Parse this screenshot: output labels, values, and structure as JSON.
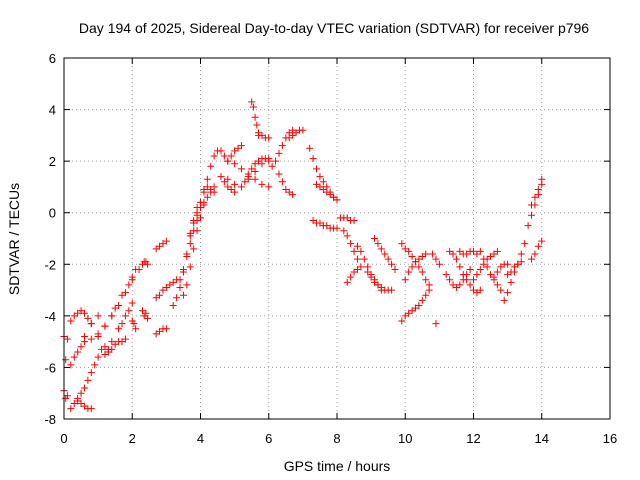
{
  "chart_data": {
    "type": "scatter",
    "title": "Day 194 of 2025, Sidereal Day-to-day VTEC variation (SDTVAR) for receiver p796",
    "xlabel": "GPS time / hours",
    "ylabel": "SDTVAR / TECUs",
    "xlim": [
      0,
      16
    ],
    "ylim": [
      -8,
      6
    ],
    "xticks": [
      "0",
      "2",
      "4",
      "6",
      "8",
      "10",
      "12",
      "14",
      "16"
    ],
    "yticks": [
      "-8",
      "-6",
      "-4",
      "-2",
      "0",
      "2",
      "4",
      "6"
    ],
    "grid": true,
    "marker": "+",
    "color": "#ff0000",
    "series": [
      {
        "x": [
          0.0,
          0.05,
          0.1
        ],
        "y": [
          -4.8,
          -5.7,
          -4.9
        ]
      },
      {
        "x": [
          0.0,
          0.05,
          0.1
        ],
        "y": [
          -6.9,
          -7.2,
          -7.1
        ]
      },
      {
        "x": [
          0.2,
          0.3,
          0.4,
          0.5,
          0.6,
          0.7,
          0.8,
          1.0,
          1.2,
          1.3
        ],
        "y": [
          -4.2,
          -4.0,
          -3.9,
          -3.8,
          -3.9,
          -4.1,
          -4.3,
          -4.8,
          -5.2,
          -5.3
        ]
      },
      {
        "x": [
          0.2,
          0.3,
          0.4,
          0.6,
          0.8,
          1.0,
          1.2,
          1.4,
          1.6,
          1.8,
          2.0,
          2.1
        ],
        "y": [
          -5.9,
          -5.6,
          -5.4,
          -5.0,
          -4.9,
          -4.7,
          -4.4,
          -4.0,
          -3.6,
          -3.1,
          -2.5,
          -2.2
        ]
      },
      {
        "x": [
          0.2,
          0.3,
          0.4,
          0.5,
          0.6,
          0.7,
          0.8,
          0.9,
          1.0,
          1.1
        ],
        "y": [
          -7.6,
          -7.4,
          -7.2,
          -7.0,
          -6.8,
          -6.5,
          -6.2,
          -5.9,
          -5.6,
          -5.3
        ]
      },
      {
        "x": [
          0.4,
          0.5,
          0.6,
          0.7,
          0.8
        ],
        "y": [
          -7.3,
          -7.4,
          -7.5,
          -7.6,
          -7.6
        ]
      },
      {
        "x": [
          0.5,
          0.6,
          0.8,
          1.0,
          1.2,
          1.4
        ],
        "y": [
          -5.2,
          -4.8,
          -4.3,
          -4.0,
          -4.4,
          -5.0
        ]
      },
      {
        "x": [
          1.2,
          1.3,
          1.4,
          1.5,
          1.6,
          1.7,
          1.8
        ],
        "y": [
          -5.5,
          -5.4,
          -5.3,
          -5.1,
          -5.0,
          -5.0,
          -4.9
        ]
      },
      {
        "x": [
          1.2,
          1.4,
          1.5,
          1.7,
          1.9,
          2.0
        ],
        "y": [
          -4.4,
          -4.0,
          -3.7,
          -3.2,
          -2.8,
          -2.6
        ]
      },
      {
        "x": [
          1.6,
          1.7,
          1.8,
          1.9,
          2.0
        ],
        "y": [
          -4.5,
          -4.3,
          -4.0,
          -3.8,
          -3.5
        ]
      },
      {
        "x": [
          2.0,
          2.05,
          2.1
        ],
        "y": [
          -4.2,
          -4.3,
          -4.5
        ]
      },
      {
        "x": [
          2.3,
          2.35,
          2.4,
          2.45
        ],
        "y": [
          -3.8,
          -4.0,
          -3.9,
          -4.1
        ]
      },
      {
        "x": [
          2.2,
          2.3,
          2.35,
          2.4,
          2.45
        ],
        "y": [
          -2.2,
          -2.0,
          -1.9,
          -1.9,
          -2.0
        ]
      },
      {
        "x": [
          2.7,
          2.8,
          2.9,
          3.0
        ],
        "y": [
          -1.4,
          -1.3,
          -1.2,
          -1.1
        ]
      },
      {
        "x": [
          2.7,
          2.8,
          2.9,
          3.0
        ],
        "y": [
          -4.7,
          -4.6,
          -4.5,
          -4.5
        ]
      },
      {
        "x": [
          2.7,
          2.8,
          2.9,
          3.0,
          3.1,
          3.2,
          3.3,
          3.5
        ],
        "y": [
          -3.3,
          -3.2,
          -3.0,
          -2.9,
          -2.8,
          -2.7,
          -2.6,
          -2.3
        ]
      },
      {
        "x": [
          3.2,
          3.3,
          3.4,
          3.5,
          3.6,
          3.7,
          3.8,
          3.9
        ],
        "y": [
          -3.6,
          -3.3,
          -2.9,
          -2.3,
          -1.6,
          -0.9,
          -0.3,
          0.2
        ]
      },
      {
        "x": [
          3.4,
          3.5,
          3.6,
          3.7,
          3.8,
          3.9
        ],
        "y": [
          -2.6,
          -2.2,
          -1.7,
          -1.2,
          -0.7,
          -0.3
        ]
      },
      {
        "x": [
          3.5,
          3.6,
          3.7,
          3.8,
          3.9,
          4.0,
          4.1
        ],
        "y": [
          -3.2,
          -2.8,
          -2.1,
          -1.4,
          -0.7,
          -0.2,
          0.3
        ]
      },
      {
        "x": [
          3.7,
          3.8,
          3.9,
          4.0,
          4.1,
          4.2,
          4.3,
          4.4
        ],
        "y": [
          -0.8,
          -0.4,
          -0.1,
          0.2,
          0.4,
          0.6,
          0.8,
          1.0
        ]
      },
      {
        "x": [
          3.9,
          4.0,
          4.1,
          4.2,
          4.3,
          4.4
        ],
        "y": [
          0.0,
          0.4,
          0.8,
          1.0,
          0.9,
          0.8
        ]
      },
      {
        "x": [
          4.1,
          4.2,
          4.3,
          4.4,
          4.5
        ],
        "y": [
          0.9,
          1.3,
          1.8,
          2.2,
          2.4
        ]
      },
      {
        "x": [
          4.6,
          4.7,
          4.8,
          4.9,
          5.0
        ],
        "y": [
          1.4,
          1.2,
          1.0,
          0.9,
          0.8
        ]
      },
      {
        "x": [
          4.8,
          4.9,
          5.0,
          5.1,
          5.2
        ],
        "y": [
          2.0,
          2.2,
          2.4,
          2.5,
          2.6
        ]
      },
      {
        "x": [
          4.6,
          4.7,
          4.8,
          5.0,
          5.2,
          5.4,
          5.6,
          5.8,
          6.0
        ],
        "y": [
          2.4,
          2.2,
          2.0,
          1.9,
          1.7,
          1.5,
          1.3,
          1.1,
          1.0
        ]
      },
      {
        "x": [
          4.8,
          5.0,
          5.2,
          5.4,
          5.6,
          5.8,
          6.0
        ],
        "y": [
          1.3,
          1.1,
          1.0,
          1.3,
          1.6,
          1.9,
          2.1
        ]
      },
      {
        "x": [
          5.3,
          5.4,
          5.5,
          5.6,
          5.7,
          5.8,
          5.9,
          6.0
        ],
        "y": [
          1.2,
          1.4,
          1.7,
          1.9,
          2.0,
          2.1,
          2.1,
          2.0
        ]
      },
      {
        "x": [
          5.5,
          5.55,
          5.6,
          5.65,
          5.7
        ],
        "y": [
          4.3,
          4.1,
          3.7,
          3.4,
          3.1
        ]
      },
      {
        "x": [
          5.7,
          5.8,
          5.9,
          6.0
        ],
        "y": [
          3.0,
          3.0,
          2.9,
          2.9
        ]
      },
      {
        "x": [
          6.1,
          6.2,
          6.3,
          6.4,
          6.5,
          6.6,
          6.7
        ],
        "y": [
          1.8,
          2.0,
          2.3,
          2.6,
          2.9,
          3.1,
          3.2
        ]
      },
      {
        "x": [
          6.3,
          6.4,
          6.5,
          6.6,
          6.7
        ],
        "y": [
          1.5,
          1.2,
          0.9,
          0.8,
          0.7
        ]
      },
      {
        "x": [
          6.6,
          6.7,
          6.8,
          6.9,
          7.0
        ],
        "y": [
          2.9,
          3.0,
          3.1,
          3.2,
          3.2
        ]
      },
      {
        "x": [
          7.2,
          7.3,
          7.4,
          7.5,
          7.6,
          7.7,
          7.8,
          7.9,
          8.0
        ],
        "y": [
          2.5,
          2.1,
          1.7,
          1.4,
          1.2,
          1.0,
          0.8,
          0.6,
          0.5
        ]
      },
      {
        "x": [
          7.4,
          7.5,
          7.6,
          7.7,
          7.8,
          7.9,
          8.0
        ],
        "y": [
          1.1,
          1.0,
          0.9,
          0.8,
          0.7,
          0.6,
          0.5
        ]
      },
      {
        "x": [
          7.3,
          7.4,
          7.5,
          7.6,
          7.7,
          7.8,
          7.9,
          8.0
        ],
        "y": [
          -0.3,
          -0.4,
          -0.4,
          -0.5,
          -0.5,
          -0.6,
          -0.6,
          -0.6
        ]
      },
      {
        "x": [
          8.1,
          8.2,
          8.3,
          8.4,
          8.5
        ],
        "y": [
          -0.2,
          -0.2,
          -0.2,
          -0.3,
          -0.3
        ]
      },
      {
        "x": [
          8.2,
          8.3,
          8.4,
          8.5,
          8.6,
          8.7
        ],
        "y": [
          -0.7,
          -0.9,
          -1.2,
          -1.5,
          -1.8,
          -2.1
        ]
      },
      {
        "x": [
          8.3,
          8.4,
          8.5,
          8.6
        ],
        "y": [
          -2.7,
          -2.5,
          -2.3,
          -2.2
        ]
      },
      {
        "x": [
          8.6,
          8.7,
          8.8,
          8.9,
          9.0,
          9.1,
          9.2,
          9.3
        ],
        "y": [
          -1.3,
          -1.5,
          -1.8,
          -2.1,
          -2.4,
          -2.6,
          -2.8,
          -3.0
        ]
      },
      {
        "x": [
          8.9,
          9.0,
          9.1,
          9.2,
          9.3,
          9.4,
          9.5,
          9.6
        ],
        "y": [
          -2.3,
          -2.5,
          -2.7,
          -2.8,
          -2.9,
          -3.0,
          -3.0,
          -3.0
        ]
      },
      {
        "x": [
          9.1,
          9.2,
          9.3,
          9.4,
          9.5,
          9.6,
          9.7
        ],
        "y": [
          -1.0,
          -1.2,
          -1.4,
          -1.6,
          -1.8,
          -2.0,
          -2.2
        ]
      },
      {
        "x": [
          9.9,
          10.0,
          10.1,
          10.2,
          10.3,
          10.4,
          10.5,
          10.6,
          10.7
        ],
        "y": [
          -4.2,
          -4.0,
          -3.9,
          -3.8,
          -3.7,
          -3.6,
          -3.4,
          -3.2,
          -3.0
        ]
      },
      {
        "x": [
          9.9,
          10.0,
          10.1,
          10.2,
          10.3,
          10.4,
          10.5,
          10.6,
          10.7
        ],
        "y": [
          -1.2,
          -1.4,
          -1.5,
          -1.7,
          -1.9,
          -2.1,
          -2.3,
          -2.6,
          -2.8
        ]
      },
      {
        "x": [
          10.0,
          10.1,
          10.2,
          10.3,
          10.4,
          10.5,
          10.6
        ],
        "y": [
          -2.6,
          -2.3,
          -2.1,
          -1.9,
          -1.8,
          -1.7,
          -1.6
        ]
      },
      {
        "x": [
          10.8,
          10.9,
          11.0
        ],
        "y": [
          -1.6,
          -1.8,
          -2.0
        ]
      },
      {
        "x": [
          10.9
        ],
        "y": [
          -4.3
        ]
      },
      {
        "x": [
          11.2,
          11.3,
          11.4,
          11.5,
          11.6,
          11.7,
          11.8,
          11.9
        ],
        "y": [
          -2.4,
          -2.6,
          -2.8,
          -2.9,
          -2.8,
          -2.6,
          -2.4,
          -2.2
        ]
      },
      {
        "x": [
          11.3,
          11.4,
          11.5,
          11.6,
          11.7,
          11.8,
          11.9,
          12.0,
          12.1,
          12.2
        ],
        "y": [
          -1.5,
          -1.6,
          -1.8,
          -2.1,
          -2.4,
          -2.6,
          -2.8,
          -3.0,
          -3.1,
          -3.0
        ]
      },
      {
        "x": [
          11.6,
          11.7,
          11.8,
          11.9,
          12.0,
          12.1
        ],
        "y": [
          -1.5,
          -1.6,
          -1.6,
          -1.5,
          -1.5,
          -1.6
        ]
      },
      {
        "x": [
          12.0,
          12.1,
          12.2,
          12.3,
          12.4,
          12.5,
          12.6,
          12.7
        ],
        "y": [
          -2.6,
          -2.4,
          -2.2,
          -2.0,
          -1.8,
          -1.7,
          -1.6,
          -1.5
        ]
      },
      {
        "x": [
          12.2,
          12.3,
          12.4,
          12.5,
          12.6,
          12.7,
          12.8
        ],
        "y": [
          -1.5,
          -1.8,
          -2.1,
          -2.4,
          -2.6,
          -2.8,
          -3.0
        ]
      },
      {
        "x": [
          12.6,
          12.7,
          12.8,
          12.9,
          13.0
        ],
        "y": [
          -2.5,
          -2.3,
          -2.1,
          -2.0,
          -2.0
        ]
      },
      {
        "x": [
          12.9,
          13.0,
          13.1,
          13.2,
          13.3,
          13.4,
          13.5
        ],
        "y": [
          -3.4,
          -3.1,
          -2.7,
          -2.3,
          -2.0,
          -1.6,
          -1.2
        ]
      },
      {
        "x": [
          13.0,
          13.1,
          13.2,
          13.3,
          13.4
        ],
        "y": [
          -2.4,
          -2.3,
          -2.1,
          -2.0,
          -1.9
        ]
      },
      {
        "x": [
          13.6,
          13.7,
          13.8,
          13.9,
          14.0
        ],
        "y": [
          -0.5,
          -0.1,
          0.3,
          0.7,
          1.1
        ]
      },
      {
        "x": [
          13.7,
          13.8,
          13.9,
          14.0
        ],
        "y": [
          0.3,
          0.6,
          0.9,
          1.3
        ]
      },
      {
        "x": [
          13.7,
          13.8,
          13.9,
          14.0
        ],
        "y": [
          -1.8,
          -1.6,
          -1.3,
          -1.1
        ]
      }
    ]
  }
}
